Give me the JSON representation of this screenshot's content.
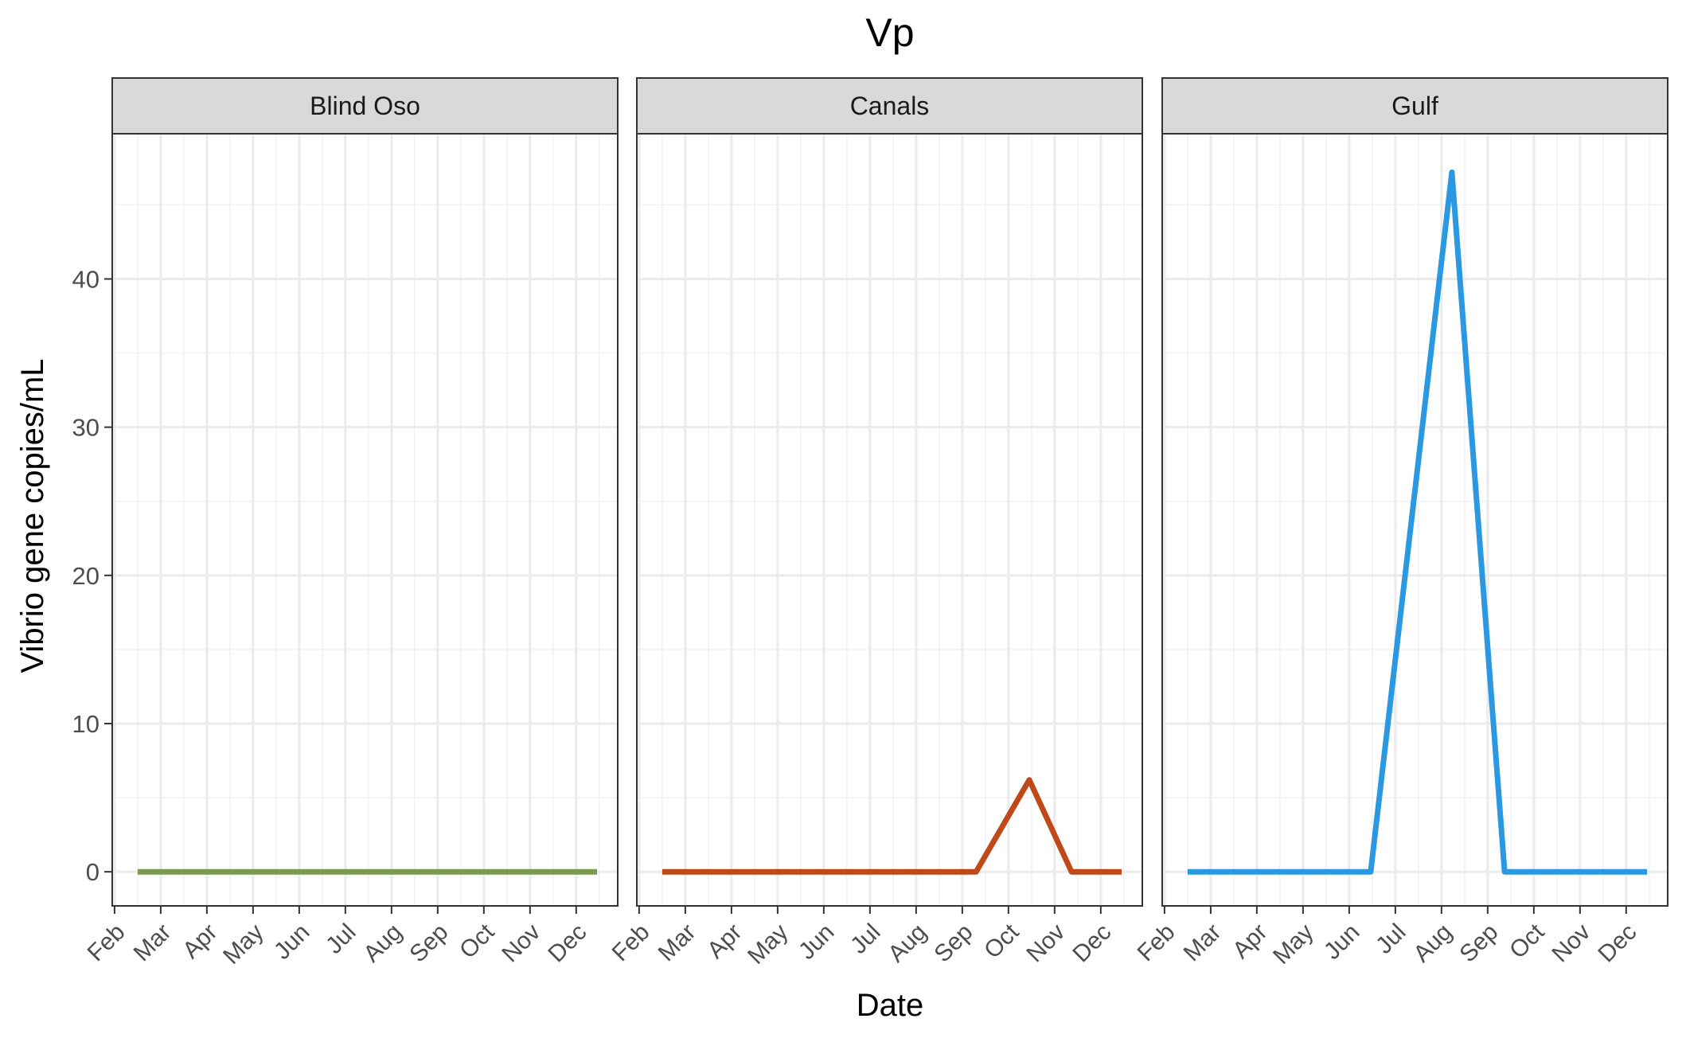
{
  "chart_data": {
    "type": "line",
    "title": "Vp",
    "xlabel": "Date",
    "ylabel": "Vibrio gene copies/mL",
    "ylim": [
      -2.3,
      49.8
    ],
    "y_ticks": [
      0,
      10,
      20,
      30,
      40
    ],
    "y_tick_labels": [
      "0",
      "10",
      "20",
      "30",
      "40"
    ],
    "month_ticks": [
      "Feb",
      "Mar",
      "Apr",
      "May",
      "Jun",
      "Jul",
      "Aug",
      "Sep",
      "Oct",
      "Nov",
      "Dec"
    ],
    "x_range": [
      -0.05,
      10.9
    ],
    "grid": true,
    "legend": "none",
    "panels": [
      {
        "strip": "Blind Oso",
        "color": "#7a9a52",
        "points": [
          {
            "date": "Feb 15",
            "y": 0
          },
          {
            "date": "Dec 15",
            "y": 0
          }
        ]
      },
      {
        "strip": "Canals",
        "color": "#c0491a",
        "points": [
          {
            "date": "Feb 15",
            "y": 0
          },
          {
            "date": "Sep 10",
            "y": 0
          },
          {
            "date": "Oct 15",
            "y": 6.2
          },
          {
            "date": "Nov 12",
            "y": 0
          },
          {
            "date": "Dec 15",
            "y": 0
          }
        ]
      },
      {
        "strip": "Gulf",
        "color": "#2b98e2",
        "points": [
          {
            "date": "Feb 15",
            "y": 0
          },
          {
            "date": "Jun 15",
            "y": 0
          },
          {
            "date": "Aug 8",
            "y": 47.2
          },
          {
            "date": "Sep 12",
            "y": 0
          },
          {
            "date": "Dec 15",
            "y": 0
          }
        ]
      }
    ]
  }
}
